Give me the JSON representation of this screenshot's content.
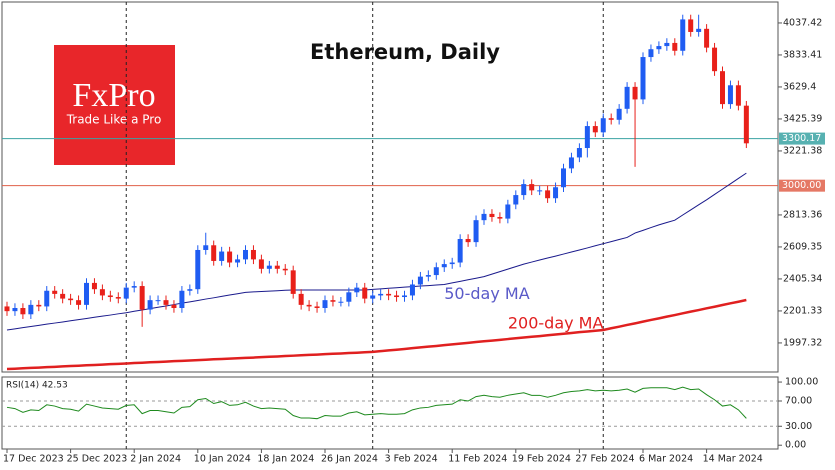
{
  "chart_data": [
    {
      "type": "candlestick",
      "title": "Ethereum, Daily",
      "watermark": {
        "brand": "FxPro",
        "tagline": "Trade Like a Pro",
        "color": "#e8262a"
      },
      "x": [
        "17 Dec 2023",
        "18 Dec 2023",
        "19 Dec 2023",
        "20 Dec 2023",
        "21 Dec 2023",
        "22 Dec 2023",
        "23 Dec 2023",
        "24 Dec 2023",
        "25 Dec 2023",
        "26 Dec 2023",
        "27 Dec 2023",
        "28 Dec 2023",
        "29 Dec 2023",
        "30 Dec 2023",
        "31 Dec 2023",
        "1 Jan 2024",
        "2 Jan 2024",
        "3 Jan 2024",
        "4 Jan 2024",
        "5 Jan 2024",
        "6 Jan 2024",
        "7 Jan 2024",
        "8 Jan 2024",
        "9 Jan 2024",
        "10 Jan 2024",
        "11 Jan 2024",
        "12 Jan 2024",
        "13 Jan 2024",
        "14 Jan 2024",
        "15 Jan 2024",
        "16 Jan 2024",
        "17 Jan 2024",
        "18 Jan 2024",
        "19 Jan 2024",
        "20 Jan 2024",
        "21 Jan 2024",
        "22 Jan 2024",
        "23 Jan 2024",
        "24 Jan 2024",
        "25 Jan 2024",
        "26 Jan 2024",
        "27 Jan 2024",
        "28 Jan 2024",
        "29 Jan 2024",
        "30 Jan 2024",
        "31 Jan 2024",
        "1 Feb 2024",
        "2 Feb 2024",
        "3 Feb 2024",
        "4 Feb 2024",
        "5 Feb 2024",
        "6 Feb 2024",
        "7 Feb 2024",
        "8 Feb 2024",
        "9 Feb 2024",
        "10 Feb 2024",
        "11 Feb 2024",
        "12 Feb 2024",
        "13 Feb 2024",
        "14 Feb 2024",
        "15 Feb 2024",
        "16 Feb 2024",
        "17 Feb 2024",
        "18 Feb 2024",
        "19 Feb 2024",
        "20 Feb 2024",
        "21 Feb 2024",
        "22 Feb 2024",
        "23 Feb 2024",
        "24 Feb 2024",
        "25 Feb 2024",
        "26 Feb 2024",
        "27 Feb 2024",
        "28 Feb 2024",
        "29 Feb 2024",
        "1 Mar 2024",
        "2 Mar 2024",
        "3 Mar 2024",
        "4 Mar 2024",
        "5 Mar 2024",
        "6 Mar 2024",
        "7 Mar 2024",
        "8 Mar 2024",
        "9 Mar 2024",
        "10 Mar 2024",
        "11 Mar 2024",
        "12 Mar 2024",
        "13 Mar 2024",
        "14 Mar 2024",
        "15 Mar 2024",
        "16 Mar 2024",
        "17 Mar 2024",
        "18 Mar 2024",
        "19 Mar 2024"
      ],
      "open": [
        2230,
        2200,
        2220,
        2180,
        2240,
        2230,
        2330,
        2310,
        2280,
        2270,
        2240,
        2380,
        2340,
        2300,
        2290,
        2280,
        2350,
        2360,
        2210,
        2270,
        2270,
        2240,
        2220,
        2330,
        2340,
        2590,
        2620,
        2520,
        2580,
        2510,
        2530,
        2590,
        2530,
        2470,
        2490,
        2470,
        2460,
        2310,
        2240,
        2230,
        2220,
        2270,
        2260,
        2260,
        2320,
        2350,
        2280,
        2300,
        2310,
        2300,
        2290,
        2300,
        2370,
        2420,
        2430,
        2480,
        2500,
        2510,
        2660,
        2640,
        2780,
        2820,
        2800,
        2790,
        2880,
        2940,
        3010,
        2970,
        2970,
        2920,
        2990,
        3110,
        3180,
        3240,
        3380,
        3340,
        3430,
        3420,
        3490,
        3630,
        3550,
        3820,
        3870,
        3890,
        3910,
        3860,
        4060,
        3980,
        4000,
        3880,
        3730,
        3520,
        3640,
        3510
      ],
      "high": [
        2260,
        2250,
        2250,
        2270,
        2270,
        2360,
        2360,
        2340,
        2310,
        2300,
        2410,
        2410,
        2370,
        2330,
        2320,
        2380,
        2390,
        2390,
        2300,
        2300,
        2300,
        2270,
        2360,
        2370,
        2620,
        2700,
        2650,
        2610,
        2610,
        2560,
        2620,
        2620,
        2560,
        2520,
        2520,
        2500,
        2490,
        2340,
        2270,
        2260,
        2300,
        2300,
        2290,
        2350,
        2380,
        2380,
        2330,
        2340,
        2340,
        2330,
        2330,
        2400,
        2450,
        2460,
        2510,
        2530,
        2540,
        2690,
        2690,
        2810,
        2850,
        2850,
        2830,
        2910,
        2970,
        3040,
        3040,
        3000,
        3000,
        3020,
        3140,
        3210,
        3270,
        3410,
        3410,
        3460,
        3460,
        3520,
        3660,
        3660,
        3850,
        3900,
        3920,
        3940,
        3940,
        4090,
        4090,
        4090,
        4030,
        3910,
        3760,
        3670,
        3670,
        3540
      ],
      "low": [
        2170,
        2170,
        2150,
        2150,
        2200,
        2200,
        2280,
        2250,
        2240,
        2210,
        2210,
        2310,
        2270,
        2260,
        2250,
        2250,
        2320,
        2100,
        2180,
        2240,
        2210,
        2190,
        2190,
        2300,
        2310,
        2560,
        2490,
        2490,
        2480,
        2480,
        2500,
        2500,
        2440,
        2440,
        2440,
        2430,
        2280,
        2210,
        2200,
        2190,
        2190,
        2230,
        2230,
        2230,
        2290,
        2250,
        2250,
        2270,
        2270,
        2260,
        2260,
        2270,
        2340,
        2390,
        2400,
        2450,
        2470,
        2480,
        2610,
        2610,
        2750,
        2770,
        2760,
        2760,
        2850,
        2910,
        2940,
        2940,
        2890,
        2890,
        2960,
        3080,
        3150,
        3180,
        3310,
        3310,
        3390,
        3390,
        3460,
        3120,
        3520,
        3790,
        3840,
        3860,
        3830,
        3830,
        3950,
        3950,
        3850,
        3700,
        3490,
        3490,
        3480,
        3240
      ],
      "close": [
        2200,
        2220,
        2180,
        2240,
        2230,
        2330,
        2310,
        2280,
        2270,
        2240,
        2380,
        2340,
        2300,
        2290,
        2280,
        2350,
        2360,
        2210,
        2270,
        2270,
        2240,
        2220,
        2330,
        2340,
        2590,
        2620,
        2520,
        2580,
        2510,
        2530,
        2590,
        2530,
        2470,
        2490,
        2470,
        2460,
        2310,
        2240,
        2230,
        2220,
        2270,
        2260,
        2260,
        2320,
        2350,
        2280,
        2300,
        2310,
        2300,
        2290,
        2300,
        2370,
        2420,
        2430,
        2480,
        2500,
        2510,
        2660,
        2640,
        2780,
        2820,
        2800,
        2790,
        2880,
        2940,
        3010,
        2970,
        2970,
        2920,
        2990,
        3110,
        3180,
        3240,
        3380,
        3340,
        3430,
        3420,
        3490,
        3630,
        3550,
        3820,
        3870,
        3890,
        3910,
        3860,
        4060,
        3980,
        4000,
        3880,
        3730,
        3520,
        3640,
        3510,
        3270
      ],
      "up_color": "#1f5cf2",
      "down_color": "#e8201a",
      "overlays": [
        {
          "name": "50-day MA",
          "color": "#1a1a8c",
          "label_color": "#5a5ac8",
          "values": [
            2080,
            2087,
            2095,
            2102,
            2109,
            2117,
            2124,
            2131,
            2139,
            2146,
            2153,
            2161,
            2168,
            2175,
            2183,
            2190,
            2199,
            2207,
            2216,
            2225,
            2233,
            2242,
            2251,
            2259,
            2268,
            2277,
            2285,
            2294,
            2303,
            2311,
            2320,
            2323,
            2325,
            2328,
            2330,
            2333,
            2335,
            2335,
            2335,
            2335,
            2335,
            2335,
            2335,
            2335,
            2335,
            2335,
            2339,
            2342,
            2346,
            2349,
            2353,
            2356,
            2360,
            2363,
            2367,
            2370,
            2380,
            2390,
            2400,
            2410,
            2420,
            2436,
            2452,
            2468,
            2484,
            2500,
            2513,
            2526,
            2539,
            2551,
            2564,
            2577,
            2590,
            2603,
            2617,
            2630,
            2643,
            2657,
            2670,
            2698,
            2715,
            2733,
            2750,
            2765,
            2780,
            2813,
            2845,
            2878,
            2910,
            2944,
            2978,
            3012,
            3046,
            3080
          ]
        },
        {
          "name": "200-day MA",
          "color": "#e02020",
          "label_color": "#e02020",
          "values": [
            1831,
            1833,
            1836,
            1838,
            1840,
            1843,
            1845,
            1848,
            1850,
            1852,
            1855,
            1857,
            1859,
            1862,
            1864,
            1866,
            1869,
            1871,
            1874,
            1876,
            1878,
            1881,
            1883,
            1885,
            1888,
            1890,
            1893,
            1895,
            1897,
            1900,
            1902,
            1904,
            1907,
            1909,
            1911,
            1914,
            1916,
            1919,
            1921,
            1923,
            1926,
            1928,
            1930,
            1933,
            1935,
            1938,
            1940,
            1945,
            1950,
            1954,
            1959,
            1964,
            1969,
            1974,
            1978,
            1983,
            1988,
            1993,
            1998,
            2003,
            2008,
            2012,
            2017,
            2022,
            2027,
            2032,
            2037,
            2041,
            2046,
            2051,
            2056,
            2061,
            2066,
            2070,
            2075,
            2080,
            2091,
            2101,
            2112,
            2122,
            2133,
            2144,
            2154,
            2165,
            2175,
            2186,
            2197,
            2207,
            2218,
            2228,
            2239,
            2250,
            2260,
            2271
          ]
        }
      ],
      "hlines": [
        {
          "value": 3300.17,
          "color": "#3aa3a3"
        },
        {
          "value": {
            "value": 3000,
            "label": "3000.00"
          },
          "color": "#e0604a"
        }
      ],
      "ylim": [
        1812,
        4171
      ],
      "yticks": [
        1997.32,
        2201.33,
        2405.34,
        2609.35,
        2813.36,
        3221.38,
        3425.39,
        3629.4,
        3833.41,
        4037.42
      ]
    },
    {
      "type": "line",
      "title": "RSI(14) 42.53",
      "color": "#1e8a1e",
      "values": [
        60,
        58,
        52,
        56,
        55,
        64,
        62,
        58,
        57,
        54,
        65,
        62,
        59,
        58,
        57,
        63,
        64,
        50,
        55,
        55,
        53,
        51,
        60,
        61,
        72,
        74,
        66,
        69,
        63,
        64,
        68,
        62,
        58,
        59,
        58,
        57,
        47,
        43,
        43,
        42,
        47,
        46,
        46,
        51,
        53,
        48,
        49,
        50,
        49,
        49,
        50,
        56,
        59,
        60,
        63,
        64,
        65,
        72,
        70,
        77,
        79,
        77,
        76,
        79,
        81,
        83,
        79,
        79,
        76,
        79,
        83,
        85,
        86,
        88,
        86,
        87,
        86,
        87,
        89,
        84,
        90,
        91,
        91,
        91,
        88,
        92,
        88,
        89,
        80,
        72,
        62,
        64,
        56,
        42.53
      ],
      "ylim": [
        -6,
        108
      ],
      "yticks": [
        {
          "value": 100,
          "label": "100.00"
        },
        {
          "value": 70,
          "label": "70.00"
        },
        {
          "value": 30,
          "label": "30.00"
        },
        {
          "value": 0,
          "label": "0.00"
        }
      ],
      "levels": [
        1,
        2
      ]
    }
  ]
}
